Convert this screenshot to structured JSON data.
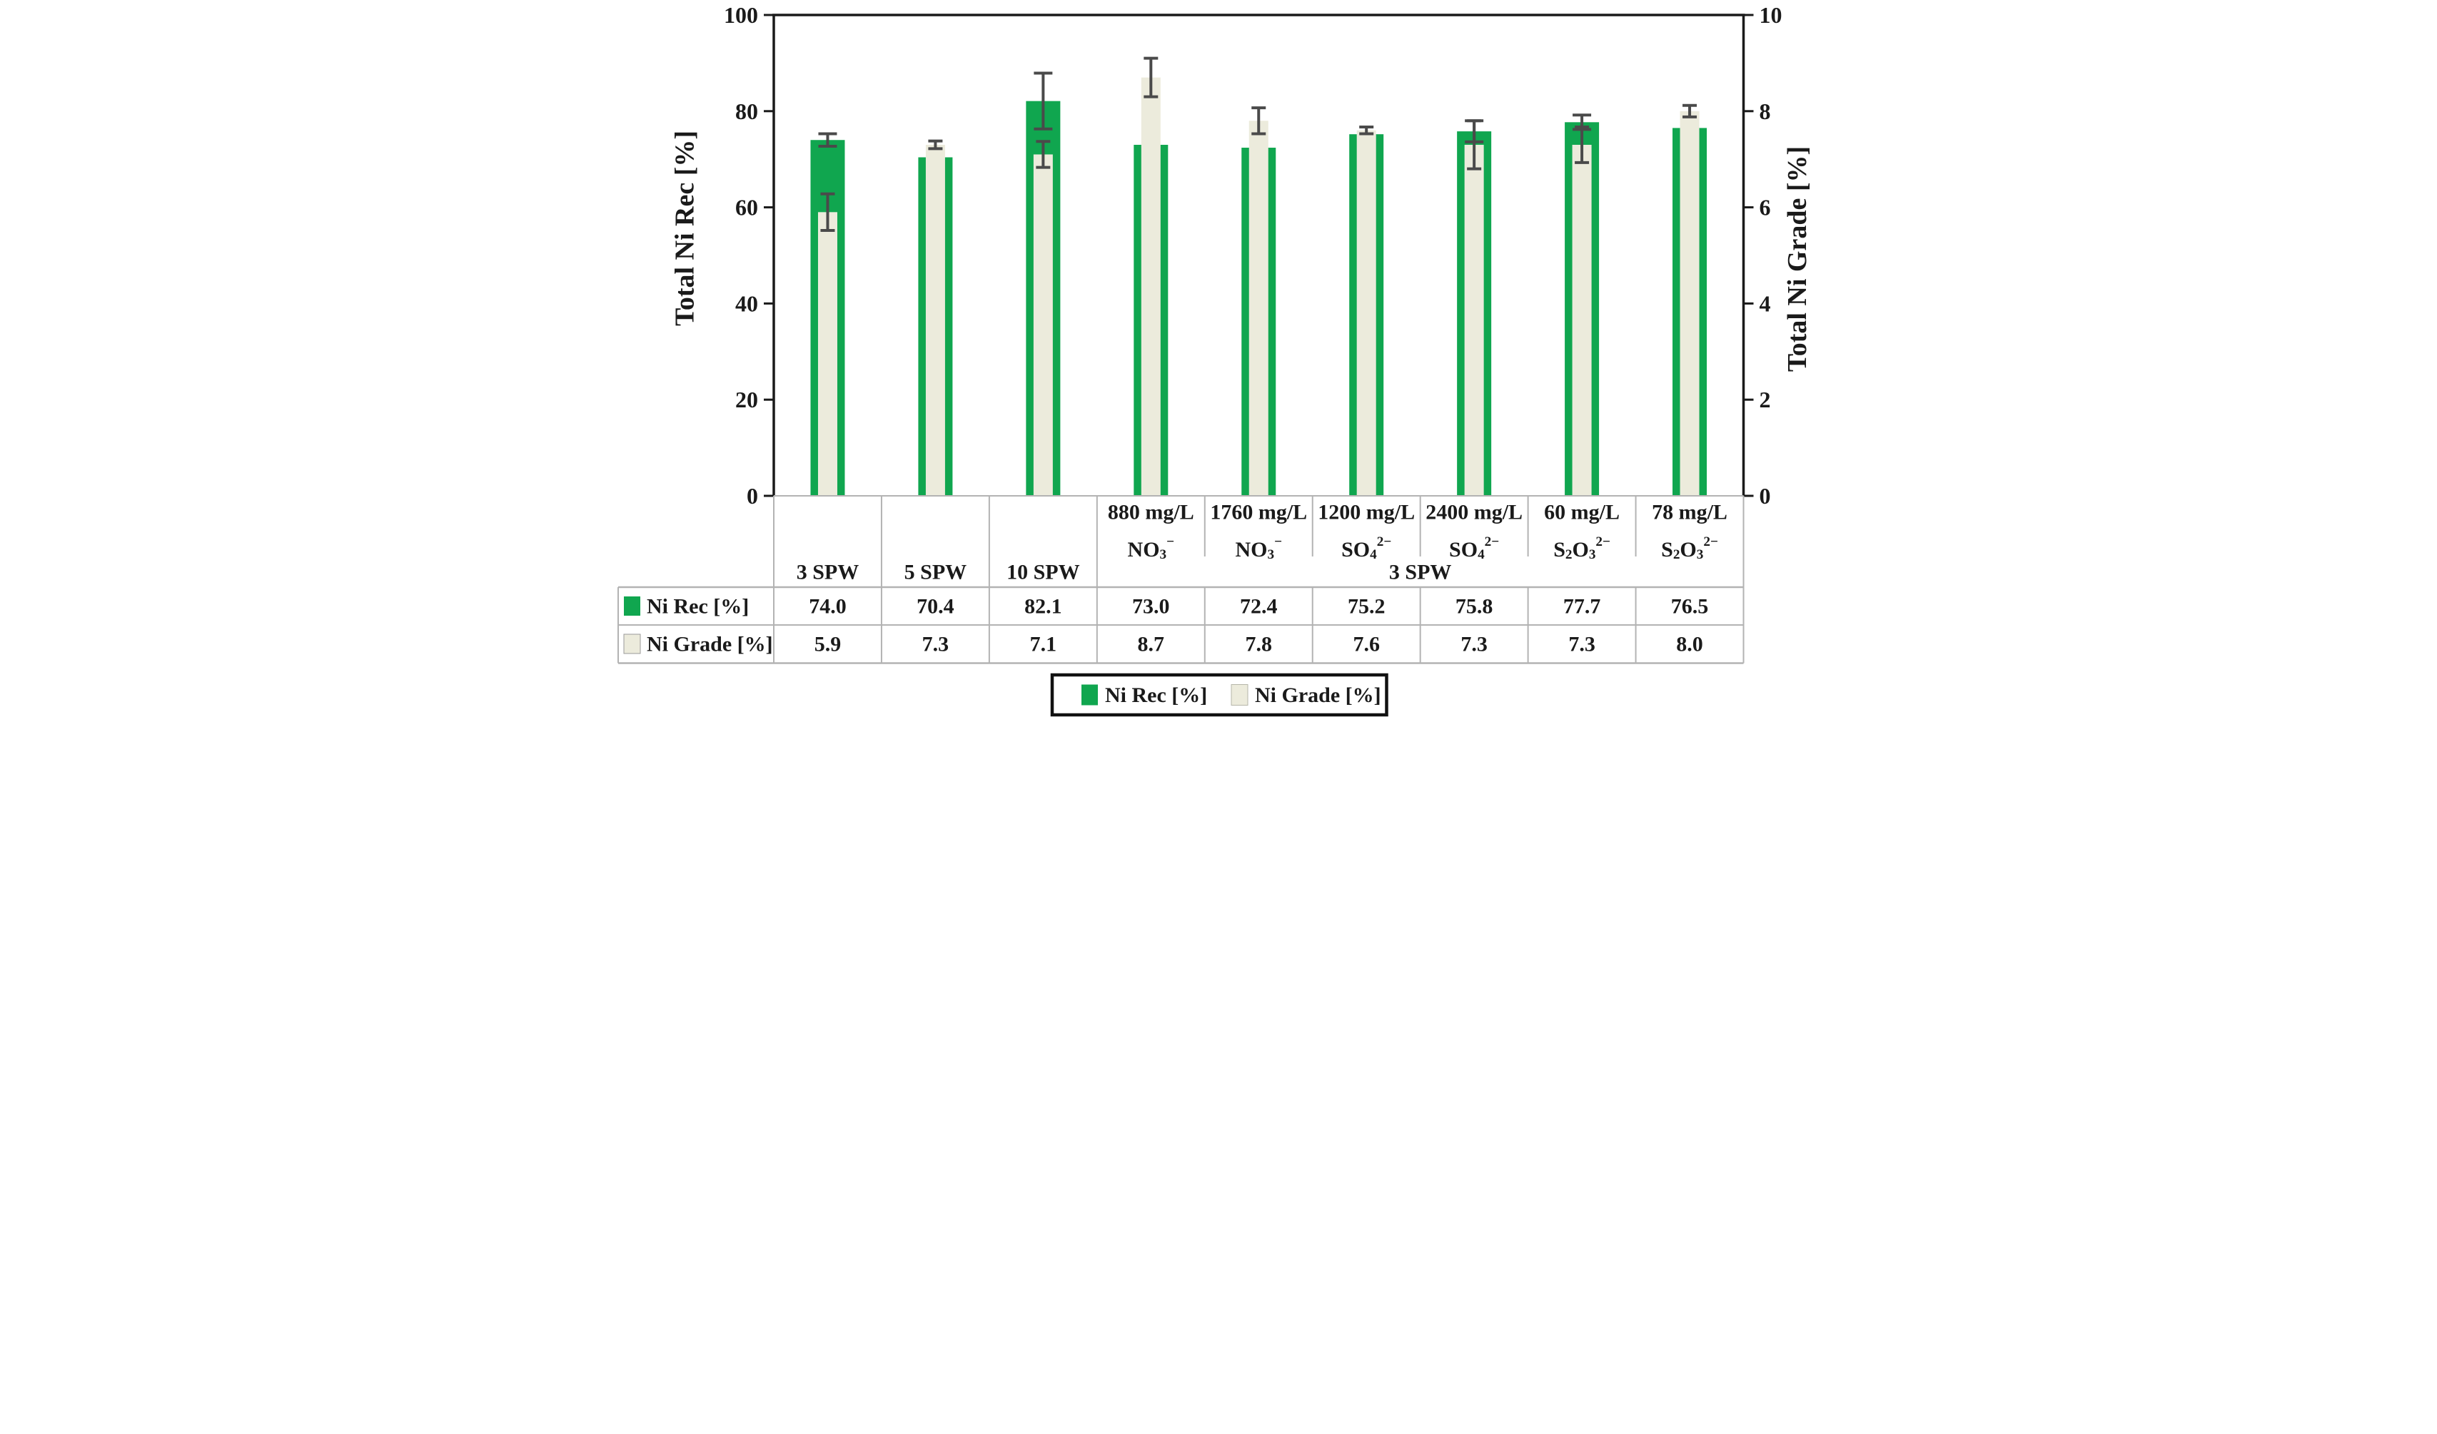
{
  "chart_data": {
    "type": "bar",
    "title": "",
    "categories": [
      "3 SPW",
      "5 SPW",
      "10 SPW",
      "880 mg/L NO₃⁻",
      "1760 mg/L NO₃⁻",
      "1200 mg/L SO₄²⁻",
      "2400 mg/L SO₄²⁻",
      "60 mg/L S₂O₃²⁻",
      "78 mg/L S₂O₃²⁻"
    ],
    "category_band": {
      "dose_lines": [
        "",
        "",
        "",
        "880 mg/L",
        "1760 mg/L",
        "1200 mg/L",
        "2400 mg/L",
        "60 mg/L",
        "78 mg/L"
      ],
      "ion_lines": [
        "",
        "",
        "",
        "NO₃⁻",
        "NO₃⁻",
        "SO₄²⁻",
        "SO₄²⁻",
        "S₂O₃²⁻",
        "S₂O₃²⁻"
      ],
      "spw_labels": [
        "3 SPW",
        "5 SPW",
        "10 SPW"
      ],
      "merged_group_label": "3 SPW"
    },
    "series": [
      {
        "name": "Ni Rec [%]",
        "axis": "left",
        "color": "#10a64f",
        "values": [
          74.0,
          70.4,
          82.1,
          73.0,
          72.4,
          75.2,
          75.8,
          77.7,
          76.5
        ],
        "errors": [
          1.3,
          0,
          5.8,
          0,
          0,
          0,
          2.2,
          1.5,
          0
        ]
      },
      {
        "name": "Ni Grade [%]",
        "axis": "right",
        "color": "#ecebdc",
        "values": [
          5.9,
          7.3,
          7.1,
          8.7,
          7.8,
          7.6,
          7.3,
          7.3,
          8.0
        ],
        "errors": [
          0.38,
          0.08,
          0.27,
          0.4,
          0.27,
          0.07,
          0.5,
          0.37,
          0.12
        ]
      }
    ],
    "left_axis": {
      "label": "Total Ni Rec [%]",
      "min": 0,
      "max": 100,
      "tick_step": 20,
      "ticks": [
        0,
        20,
        40,
        60,
        80,
        100
      ]
    },
    "right_axis": {
      "label": "Total Ni Grade [%]",
      "min": 0,
      "max": 10,
      "tick_step": 2,
      "ticks": [
        0,
        2,
        4,
        6,
        8,
        10
      ]
    },
    "legend": {
      "items": [
        {
          "label": "Ni Rec [%]",
          "swatch_color": "#10a64f"
        },
        {
          "label": "Ni Grade [%]",
          "swatch_color": "#ecebdc"
        }
      ],
      "position": "bottom"
    },
    "table": {
      "row_headers": [
        "Ni Rec [%]",
        "Ni Grade [%]"
      ],
      "rows": [
        [
          "74.0",
          "70.4",
          "82.1",
          "73.0",
          "72.4",
          "75.2",
          "75.8",
          "77.7",
          "76.5"
        ],
        [
          "5.9",
          "7.3",
          "7.1",
          "8.7",
          "7.8",
          "7.6",
          "7.3",
          "7.3",
          "8.0"
        ]
      ]
    },
    "layout_hints": {
      "grid": "off",
      "bars_overlapped": true,
      "data_table_shown": true
    },
    "colors": {
      "rec_green": "#10a64f",
      "grade_cream": "#ecebdc",
      "error_bar": "#4a4a4a",
      "axis_black": "#1a1a1a",
      "grid_gray": "#b3b3b3"
    }
  }
}
